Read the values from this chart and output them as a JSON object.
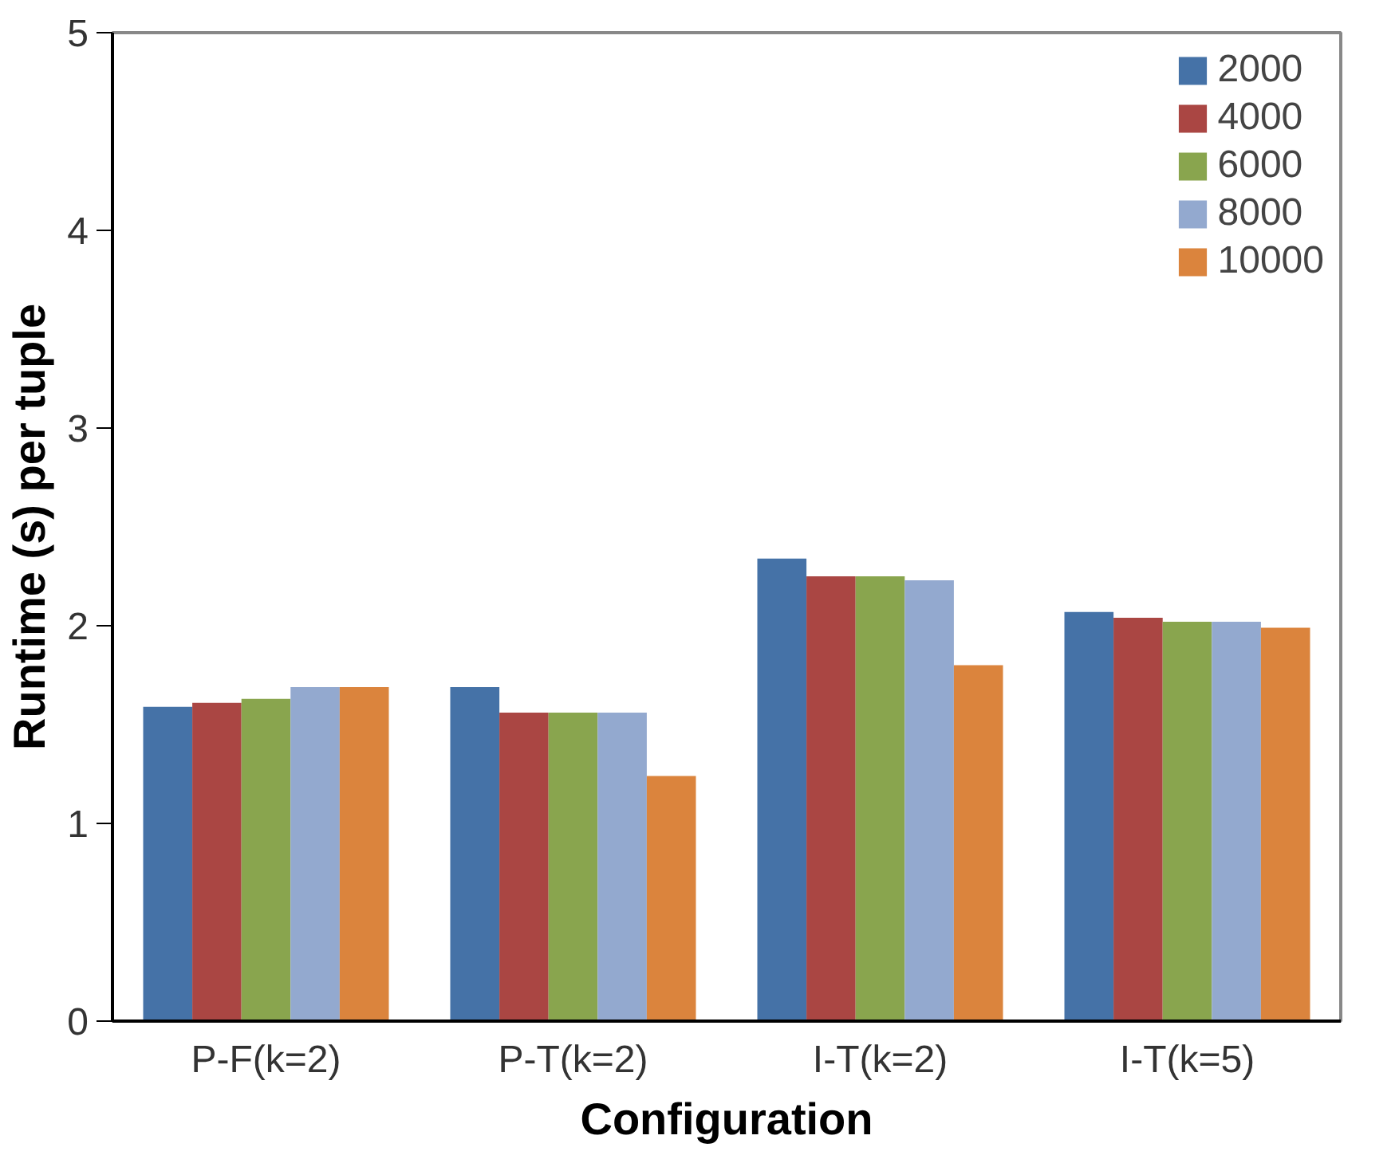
{
  "chart_data": {
    "type": "bar",
    "xlabel": "Configuration",
    "ylabel": "Runtime (s) per tuple",
    "categories": [
      "P-F(k=2)",
      "P-T(k=2)",
      "I-T(k=2)",
      "I-T(k=5)"
    ],
    "series": [
      {
        "name": "2000",
        "color": "#4572a7",
        "values": [
          1.59,
          1.69,
          2.34,
          2.07
        ]
      },
      {
        "name": "4000",
        "color": "#aa4643",
        "values": [
          1.61,
          1.56,
          2.25,
          2.04
        ]
      },
      {
        "name": "6000",
        "color": "#89a54e",
        "values": [
          1.63,
          1.56,
          2.25,
          2.02
        ]
      },
      {
        "name": "8000",
        "color": "#93a9cf",
        "values": [
          1.69,
          1.56,
          2.23,
          2.02
        ]
      },
      {
        "name": "10000",
        "color": "#db843d",
        "values": [
          1.69,
          1.24,
          1.8,
          1.99
        ]
      }
    ],
    "ylim": [
      0,
      5
    ],
    "yticks": [
      0,
      1,
      2,
      3,
      4,
      5
    ],
    "grid": false,
    "legend": "top right"
  }
}
